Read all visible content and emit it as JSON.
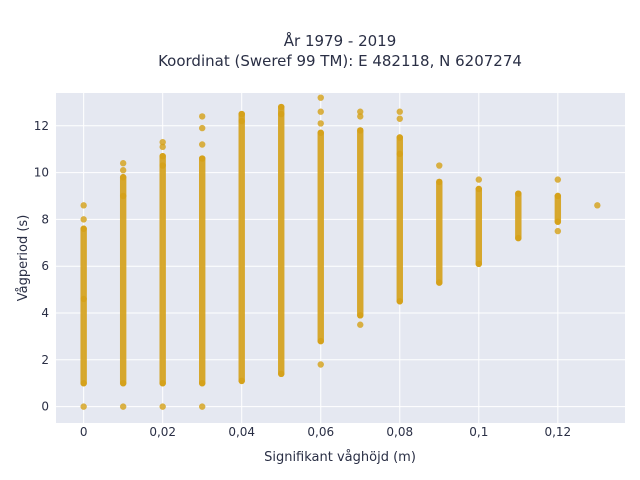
{
  "chart_data": {
    "type": "scatter",
    "title_line1": "År 1979 - 2019",
    "title_line2": "Koordinat (Sweref 99 TM): E 482118, N 6207274",
    "xlabel": "Signifikant våghöjd (m)",
    "ylabel": "Vågperiod (s)",
    "xlim": [
      -0.007,
      0.137
    ],
    "ylim": [
      -0.7,
      13.4
    ],
    "x_ticks": [
      0,
      0.02,
      0.04,
      0.06,
      0.08,
      0.1,
      0.12
    ],
    "x_tick_labels": [
      "0",
      "0,02",
      "0,04",
      "0,06",
      "0,08",
      "0,1",
      "0,12"
    ],
    "y_ticks": [
      0,
      2,
      4,
      6,
      8,
      10,
      12
    ],
    "y_tick_labels": [
      "0",
      "2",
      "4",
      "6",
      "8",
      "10",
      "12"
    ],
    "grid": true,
    "colors": {
      "marker": "#d4a017",
      "plot_bg": "#e5e8f1",
      "grid": "#ffffff"
    },
    "series": [
      {
        "points": [
          {
            "x": 0,
            "y": 0
          },
          {
            "x": 0,
            "y": 1.0
          },
          {
            "x": 0,
            "y": 4.6
          },
          {
            "x": 0,
            "y": 7.6
          },
          {
            "x": 0,
            "y": 8.0
          },
          {
            "x": 0,
            "y": 8.6
          },
          {
            "x": 0.01,
            "y": 0
          },
          {
            "x": 0.01,
            "y": 1.0
          },
          {
            "x": 0.01,
            "y": 9.0
          },
          {
            "x": 0.01,
            "y": 9.8
          },
          {
            "x": 0.01,
            "y": 10.1
          },
          {
            "x": 0.01,
            "y": 10.4
          },
          {
            "x": 0.02,
            "y": 0
          },
          {
            "x": 0.02,
            "y": 1.0
          },
          {
            "x": 0.02,
            "y": 10.3
          },
          {
            "x": 0.02,
            "y": 10.7
          },
          {
            "x": 0.02,
            "y": 11.1
          },
          {
            "x": 0.02,
            "y": 11.3
          },
          {
            "x": 0.03,
            "y": 0
          },
          {
            "x": 0.03,
            "y": 1.0
          },
          {
            "x": 0.03,
            "y": 10.6
          },
          {
            "x": 0.03,
            "y": 11.2
          },
          {
            "x": 0.03,
            "y": 11.9
          },
          {
            "x": 0.03,
            "y": 12.4
          },
          {
            "x": 0.04,
            "y": 1.1
          },
          {
            "x": 0.04,
            "y": 12.2
          },
          {
            "x": 0.04,
            "y": 12.5
          },
          {
            "x": 0.05,
            "y": 1.4
          },
          {
            "x": 0.05,
            "y": 12.5
          },
          {
            "x": 0.05,
            "y": 12.8
          },
          {
            "x": 0.06,
            "y": 1.8
          },
          {
            "x": 0.06,
            "y": 2.8
          },
          {
            "x": 0.06,
            "y": 11.7
          },
          {
            "x": 0.06,
            "y": 12.1
          },
          {
            "x": 0.06,
            "y": 12.6
          },
          {
            "x": 0.06,
            "y": 13.2
          },
          {
            "x": 0.07,
            "y": 3.5
          },
          {
            "x": 0.07,
            "y": 3.9
          },
          {
            "x": 0.07,
            "y": 11.8
          },
          {
            "x": 0.07,
            "y": 12.4
          },
          {
            "x": 0.07,
            "y": 12.6
          },
          {
            "x": 0.08,
            "y": 4.5
          },
          {
            "x": 0.08,
            "y": 10.8
          },
          {
            "x": 0.08,
            "y": 11.5
          },
          {
            "x": 0.08,
            "y": 12.3
          },
          {
            "x": 0.08,
            "y": 12.6
          },
          {
            "x": 0.09,
            "y": 5.3
          },
          {
            "x": 0.09,
            "y": 9.6
          },
          {
            "x": 0.09,
            "y": 10.3
          },
          {
            "x": 0.1,
            "y": 6.1
          },
          {
            "x": 0.1,
            "y": 9.3
          },
          {
            "x": 0.1,
            "y": 9.7
          },
          {
            "x": 0.11,
            "y": 7.2
          },
          {
            "x": 0.11,
            "y": 9.1
          },
          {
            "x": 0.12,
            "y": 7.5
          },
          {
            "x": 0.12,
            "y": 7.9
          },
          {
            "x": 0.12,
            "y": 9.0
          },
          {
            "x": 0.12,
            "y": 9.7
          },
          {
            "x": 0.13,
            "y": 8.6
          }
        ],
        "dense_ranges": [
          {
            "x": 0,
            "y_from": 1.0,
            "y_to": 7.6
          },
          {
            "x": 0.01,
            "y_from": 1.0,
            "y_to": 9.8
          },
          {
            "x": 0.02,
            "y_from": 1.0,
            "y_to": 10.7
          },
          {
            "x": 0.03,
            "y_from": 1.0,
            "y_to": 10.6
          },
          {
            "x": 0.04,
            "y_from": 1.1,
            "y_to": 12.5
          },
          {
            "x": 0.05,
            "y_from": 1.4,
            "y_to": 12.8
          },
          {
            "x": 0.06,
            "y_from": 2.8,
            "y_to": 11.7
          },
          {
            "x": 0.07,
            "y_from": 3.9,
            "y_to": 11.8
          },
          {
            "x": 0.08,
            "y_from": 4.5,
            "y_to": 11.5
          },
          {
            "x": 0.09,
            "y_from": 5.3,
            "y_to": 9.6
          },
          {
            "x": 0.1,
            "y_from": 6.1,
            "y_to": 9.3
          },
          {
            "x": 0.11,
            "y_from": 7.2,
            "y_to": 9.1
          },
          {
            "x": 0.12,
            "y_from": 7.9,
            "y_to": 9.0
          }
        ]
      }
    ]
  }
}
